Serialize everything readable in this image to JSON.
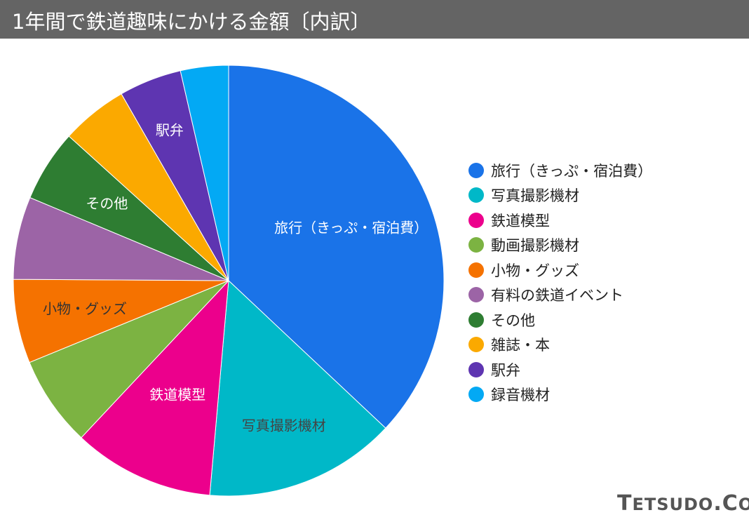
{
  "chart_data": {
    "type": "pie",
    "title": "1年間で鉄道趣味にかける金額〔内訳〕",
    "legend_position": "right",
    "slices": [
      {
        "label": "旅行（きっぷ・宿泊費）",
        "value": 37.0,
        "color": "#1a73e8",
        "show_label": true,
        "label_color": "#ffffff"
      },
      {
        "label": "写真撮影機材",
        "value": 14.4,
        "color": "#00b8c8",
        "show_label": true,
        "label_color": "#444444"
      },
      {
        "label": "鉄道模型",
        "value": 10.6,
        "color": "#ec008c",
        "show_label": true,
        "label_color": "#ffffff"
      },
      {
        "label": "動画撮影機材",
        "value": 6.8,
        "color": "#7cb342",
        "show_label": false,
        "label_color": "#ffffff"
      },
      {
        "label": "小物・グッズ",
        "value": 6.3,
        "color": "#f57200",
        "show_label": true,
        "label_color": "#333333"
      },
      {
        "label": "有料の鉄道イベント",
        "value": 6.2,
        "color": "#9c64a6",
        "show_label": false,
        "label_color": "#ffffff"
      },
      {
        "label": "その他",
        "value": 5.4,
        "color": "#2e7d32",
        "show_label": true,
        "label_color": "#ffffff"
      },
      {
        "label": "雑誌・本",
        "value": 5.0,
        "color": "#fba900",
        "show_label": false,
        "label_color": "#ffffff"
      },
      {
        "label": "駅弁",
        "value": 4.7,
        "color": "#5e35b1",
        "show_label": true,
        "label_color": "#ffffff"
      },
      {
        "label": "録音機材",
        "value": 3.6,
        "color": "#03a9f4",
        "show_label": false,
        "label_color": "#ffffff"
      }
    ]
  },
  "logo_text": "TETSUDO.COM",
  "title_bar_color": "#646464"
}
